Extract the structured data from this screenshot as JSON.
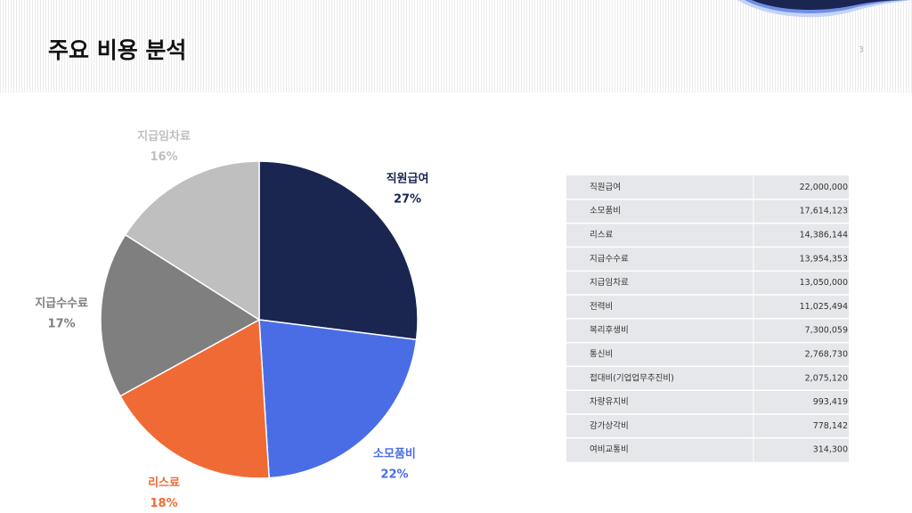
{
  "header": {
    "title": "주요 비용 분석",
    "page_number": "3"
  },
  "chart_data": {
    "type": "pie",
    "categories": [
      "직원급여",
      "소모품비",
      "리스료",
      "지급수수료",
      "지급임차료"
    ],
    "values": [
      27,
      22,
      18,
      17,
      16
    ],
    "value_labels": [
      "27%",
      "22%",
      "18%",
      "17%",
      "16%"
    ],
    "colors": [
      "#1a2550",
      "#4a6de5",
      "#f06a35",
      "#7f7f7f",
      "#bfbfbf"
    ]
  },
  "table": {
    "rows": [
      [
        "직원급여",
        "22,000,000"
      ],
      [
        "소모품비",
        "17,614,123"
      ],
      [
        "리스료",
        "14,386,144"
      ],
      [
        "지급수수료",
        "13,954,353"
      ],
      [
        "지급임차료",
        "13,050,000"
      ],
      [
        "전력비",
        "11,025,494"
      ],
      [
        "복리후생비",
        "7,300,059"
      ],
      [
        "통신비",
        "2,768,730"
      ],
      [
        "접대비(기업업무추진비)",
        "2,075,120"
      ],
      [
        "차량유지비",
        "993,419"
      ],
      [
        "감가상각비",
        "778,142"
      ],
      [
        "여비교통비",
        "314,300"
      ]
    ]
  }
}
